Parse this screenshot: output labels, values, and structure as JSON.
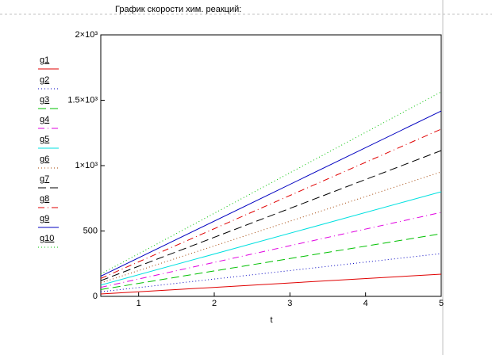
{
  "chart_data": {
    "type": "line",
    "title": "График скорости хим. реакций:",
    "x_label": "t",
    "x": [
      0.5,
      5
    ],
    "series": [
      {
        "name": "g1",
        "color": "#e00000",
        "dash": "solid",
        "values": [
          18,
          170
        ]
      },
      {
        "name": "g2",
        "color": "#0000c0",
        "dash": "dotted",
        "values": [
          35,
          327
        ]
      },
      {
        "name": "g3",
        "color": "#00c000",
        "dash": "dashed",
        "values": [
          52,
          479
        ]
      },
      {
        "name": "g4",
        "color": "#e000e0",
        "dash": "dashdot",
        "values": [
          69,
          642
        ]
      },
      {
        "name": "g5",
        "color": "#00e0e0",
        "dash": "solid",
        "values": [
          86,
          800
        ]
      },
      {
        "name": "g6",
        "color": "#a04000",
        "dash": "dotted",
        "values": [
          103,
          952
        ]
      },
      {
        "name": "g7",
        "color": "#000000",
        "dash": "dashed",
        "values": [
          120,
          1115
        ]
      },
      {
        "name": "g8",
        "color": "#e00000",
        "dash": "dashdot",
        "values": [
          137,
          1279
        ]
      },
      {
        "name": "g9",
        "color": "#0000c0",
        "dash": "solid",
        "values": [
          154,
          1418
        ]
      },
      {
        "name": "g10",
        "color": "#00c000",
        "dash": "dotted",
        "values": [
          171,
          1564
        ]
      }
    ],
    "xlim": [
      0.5,
      5
    ],
    "xticks": [
      1,
      2,
      3,
      4,
      5
    ],
    "ylim": [
      0,
      2000
    ],
    "yticks": [
      0,
      500,
      {
        "value": 1000,
        "label": "1×10³"
      },
      {
        "value": 1500,
        "label": "1.5×10³"
      },
      {
        "value": 2000,
        "label": "2×10³"
      }
    ]
  }
}
